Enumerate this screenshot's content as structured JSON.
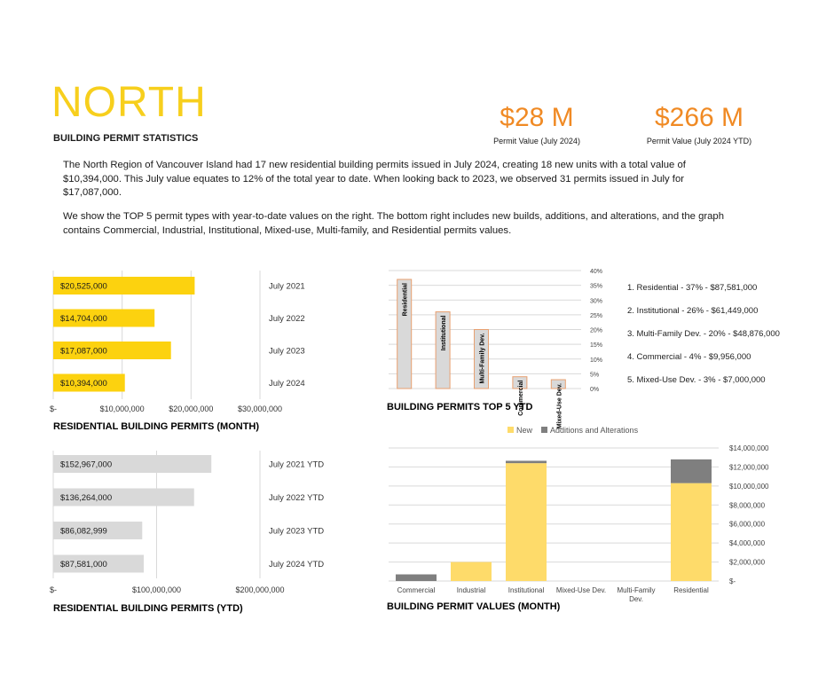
{
  "header": {
    "title": "NORTH",
    "subtitle": "BUILDING PERMIT STATISTICS"
  },
  "kpis": [
    {
      "value": "$28 M",
      "caption": "Permit Value (July 2024)"
    },
    {
      "value": "$266 M",
      "caption": "Permit Value (July 2024 YTD)"
    }
  ],
  "paragraphs": [
    "The North Region of Vancouver Island had 17 new residential building permits issued in July 2024, creating 18 new units with a total value of $10,394,000. This July value equates to 12% of the total year to date. When looking back to 2023, we observed 31 permits issued in July for $17,087,000.",
    "We show the TOP 5 permit types with year-to-date values on the right. The bottom right includes new builds, additions, and alterations, and the graph contains Commercial, Industrial, Institutional, Mixed-use, Multi-family, and Residential permits values."
  ],
  "colors": {
    "title": "#f7cf1d",
    "kpi": "#f08a24",
    "bar_yellow": "#fcd20f",
    "bar_grey": "#d9d9d9",
    "top5_fill": "#d9d9d9",
    "top5_border": "#e8a070",
    "new": "#fedb6a",
    "additions": "#7f7f7f"
  },
  "chart_data": [
    {
      "id": "monthly",
      "type": "bar",
      "orientation": "horizontal",
      "title": "RESIDENTIAL BUILDING PERMITS (MONTH)",
      "categories": [
        "July 2021",
        "July 2022",
        "July 2023",
        "July 2024"
      ],
      "values": [
        20525000,
        14704000,
        17087000,
        10394000
      ],
      "value_labels": [
        "$20,525,000",
        "$14,704,000",
        "$17,087,000",
        "$10,394,000"
      ],
      "xlim": [
        0,
        30000000
      ],
      "xticks": [
        0,
        10000000,
        20000000,
        30000000
      ],
      "xtick_labels": [
        "$-",
        "$10,000,000",
        "$20,000,000",
        "$30,000,000"
      ],
      "grid": true
    },
    {
      "id": "ytd",
      "type": "bar",
      "orientation": "horizontal",
      "title": "RESIDENTIAL BUILDING PERMITS (YTD)",
      "categories": [
        "July 2021 YTD",
        "July 2022 YTD",
        "July 2023 YTD",
        "July 2024 YTD"
      ],
      "values": [
        152967000,
        136264000,
        86082999,
        87581000
      ],
      "value_labels": [
        "$152,967,000",
        "$136,264,000",
        "$86,082,999",
        "$87,581,000"
      ],
      "xlim": [
        0,
        200000000
      ],
      "xticks": [
        0,
        100000000,
        200000000
      ],
      "xtick_labels": [
        "$-",
        "$100,000,000",
        "$200,000,000"
      ],
      "grid": true
    },
    {
      "id": "top5",
      "type": "bar",
      "title": "BUILDING PERMITS TOP 5 YTD",
      "categories": [
        "Residential",
        "Institutional",
        "Multi-Family Dev.",
        "Commercial",
        "Mixed-Use Dev."
      ],
      "values": [
        37,
        26,
        20,
        4,
        3
      ],
      "ylim": [
        0,
        40
      ],
      "yticks": [
        0,
        5,
        10,
        15,
        20,
        25,
        30,
        35,
        40
      ],
      "ytick_labels": [
        "0%",
        "5%",
        "10%",
        "15%",
        "20%",
        "25%",
        "30%",
        "35%",
        "40%"
      ],
      "y_axis_side": "right",
      "list": [
        "1. Residential - 37% - $87,581,000",
        "2. Institutional - 26% - $61,449,000",
        "3. Multi-Family Dev. - 20% - $48,876,000",
        "4. Commercial - 4% - $9,956,000",
        "5. Mixed-Use Dev. - 3% - $7,000,000"
      ],
      "grid": true
    },
    {
      "id": "values",
      "type": "bar",
      "stacked": true,
      "title": "BUILDING PERMIT VALUES (MONTH)",
      "categories": [
        "Commercial",
        "Industrial",
        "Institutional",
        "Mixed-Use Dev.",
        "Multi-Family Dev.",
        "Residential"
      ],
      "series": [
        {
          "name": "New",
          "values": [
            0,
            2000000,
            12400000,
            0,
            0,
            10300000
          ]
        },
        {
          "name": "Additions and Alterations",
          "values": [
            700000,
            0,
            250000,
            0,
            0,
            2500000
          ]
        }
      ],
      "ylim": [
        0,
        14000000
      ],
      "yticks": [
        0,
        2000000,
        4000000,
        6000000,
        8000000,
        10000000,
        12000000,
        14000000
      ],
      "ytick_labels": [
        "$-",
        "$2,000,000",
        "$4,000,000",
        "$6,000,000",
        "$8,000,000",
        "$10,000,000",
        "$12,000,000",
        "$14,000,000"
      ],
      "y_axis_side": "right",
      "legend_position": "top",
      "grid": true
    }
  ]
}
